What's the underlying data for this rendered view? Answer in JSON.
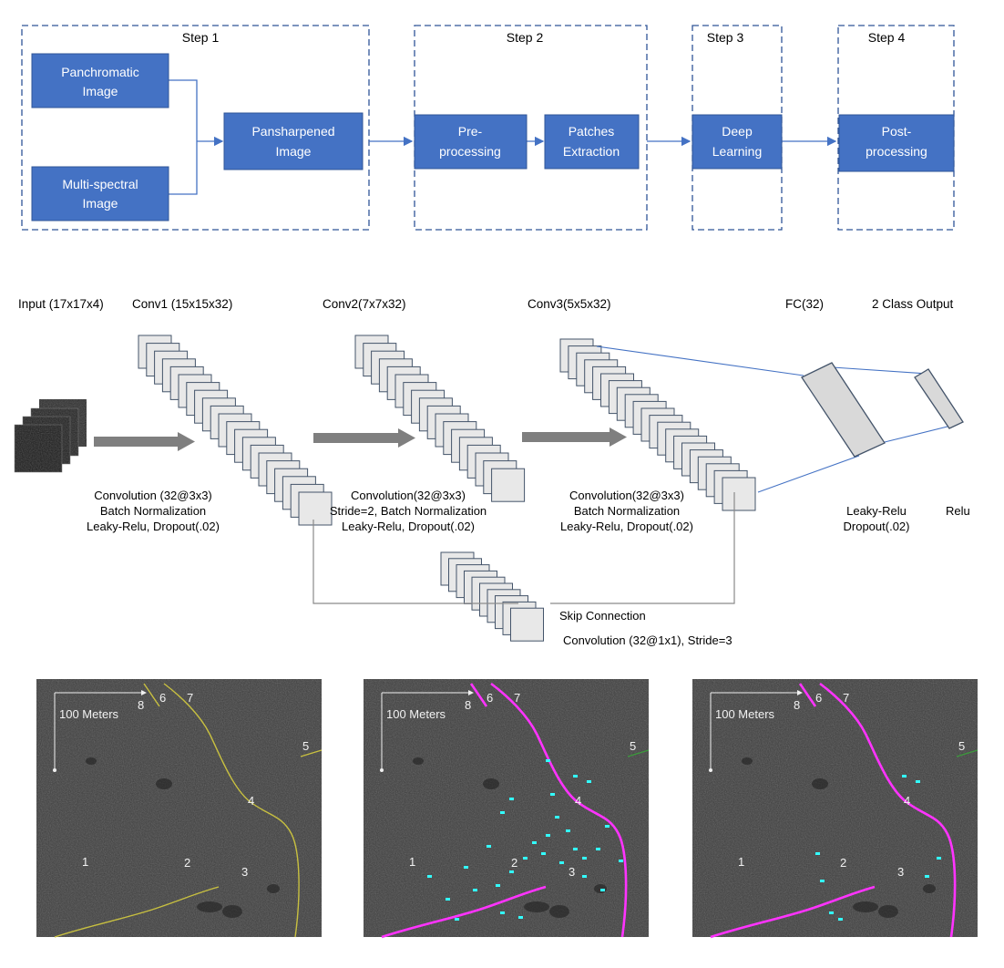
{
  "pipeline": {
    "steps": [
      {
        "label": "Step 1"
      },
      {
        "label": "Step 2"
      },
      {
        "label": "Step 3"
      },
      {
        "label": "Step 4"
      }
    ],
    "boxes": {
      "panchromatic": [
        "Panchromatic",
        "Image"
      ],
      "multispectral": [
        "Multi-spectral",
        "Image"
      ],
      "pansharpened": [
        "Pansharpened",
        "Image"
      ],
      "preprocessing": [
        "Pre-",
        "processing"
      ],
      "patches": [
        "Patches",
        "Extraction"
      ],
      "deep_learning": [
        "Deep",
        "Learning"
      ],
      "postprocessing": [
        "Post-",
        "processing"
      ]
    },
    "colors": {
      "box_fill": "#4472c4",
      "box_stroke": "#2f5597",
      "frame": "#2f5597",
      "arrow": "#4472c4"
    }
  },
  "network": {
    "layer_titles": {
      "input": "Input (17x17x4)",
      "conv1": "Conv1 (15x15x32)",
      "conv2": "Conv2(7x7x32)",
      "conv3": "Conv3(5x5x32)",
      "fc": "FC(32)",
      "output": "2 Class Output"
    },
    "ops": {
      "op1": [
        "Convolution (32@3x3)",
        "Batch Normalization",
        "Leaky-Relu, Dropout(.02)"
      ],
      "op2": [
        "Convolution(32@3x3)",
        "Stride=2, Batch Normalization",
        "Leaky-Relu, Dropout(.02)"
      ],
      "op3": [
        "Convolution(32@3x3)",
        "Batch Normalization",
        "Leaky-Relu, Dropout(.02)"
      ],
      "fc_op": [
        "Leaky-Relu",
        "Dropout(.02)"
      ],
      "out_op": "Relu",
      "skip": [
        "Skip Connection",
        "Convolution (32@1x1), Stride=3"
      ]
    },
    "colors": {
      "feature_map": "#e8e8e8",
      "arrow": "#7f7f7f",
      "fc_line": "#4472c4"
    }
  },
  "results": {
    "scale_label": "100 Meters",
    "markers": [
      "1",
      "2",
      "3",
      "4",
      "5",
      "6",
      "7",
      "8"
    ],
    "colors": {
      "ground_truth": "#c8c040",
      "prediction": "#ff33ff",
      "false_positive": "#33ffff",
      "background": "#3c3c3c"
    }
  }
}
